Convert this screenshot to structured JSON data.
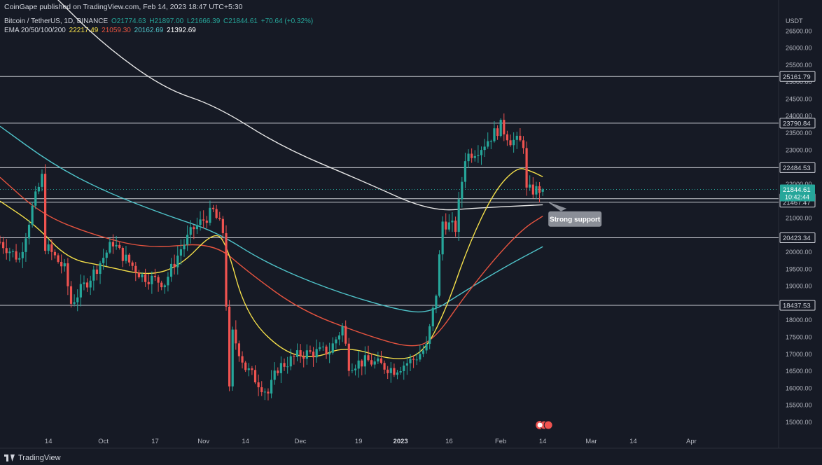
{
  "header": {
    "published": "CoinGape published on TradingView.com, Feb 14, 2023 18:47 UTC+5:30",
    "symbol": "Bitcoin / TetherUS, 1D, BINANCE",
    "ohlc": {
      "o": "O21774.63",
      "h": "H21897.00",
      "l": "L21666.39",
      "c": "C21844.61",
      "chg": "+70.64 (+0.32%)"
    },
    "ema_label": "EMA 20/50/100/200",
    "ema_values": [
      "22217.49",
      "21059.30",
      "20162.69",
      "21392.69"
    ]
  },
  "footer": {
    "brand": "TradingView"
  },
  "annotation": {
    "text": "Strong support"
  },
  "colors": {
    "bg": "#161a25",
    "up": "#26a69a",
    "down": "#ef5350",
    "ema20": "#f5e04a",
    "ema50": "#e5533f",
    "ema100": "#4fc3c9",
    "ema200": "#e6e6e6",
    "level": "#c8cbd2",
    "last": "#26a69a"
  },
  "chart_data": {
    "type": "candlestick",
    "currency": "USDT",
    "ylim": [
      14650,
      27000
    ],
    "y_ticks": [
      15000,
      15500,
      16000,
      16500,
      17000,
      17500,
      18000,
      18500,
      19000,
      19500,
      20000,
      20500,
      21000,
      21500,
      22000,
      22500,
      23000,
      23500,
      24000,
      24500,
      25000,
      25500,
      26000,
      26500
    ],
    "x_range": [
      "2022-08-30",
      "2023-04-28"
    ],
    "x_ticks": [
      {
        "date": "2022-09-14",
        "label": "14"
      },
      {
        "date": "2022-10-01",
        "label": "Oct"
      },
      {
        "date": "2022-10-17",
        "label": "17"
      },
      {
        "date": "2022-11-01",
        "label": "Nov"
      },
      {
        "date": "2022-11-14",
        "label": "14"
      },
      {
        "date": "2022-12-01",
        "label": "Dec"
      },
      {
        "date": "2022-12-19",
        "label": "19"
      },
      {
        "date": "2023-01-01",
        "label": "2023"
      },
      {
        "date": "2023-01-16",
        "label": "16"
      },
      {
        "date": "2023-02-01",
        "label": "Feb"
      },
      {
        "date": "2023-02-14",
        "label": "14"
      },
      {
        "date": "2023-03-01",
        "label": "Mar"
      },
      {
        "date": "2023-03-14",
        "label": "14"
      },
      {
        "date": "2023-04-01",
        "label": "Apr"
      }
    ],
    "levels": [
      25161.79,
      23790.84,
      22484.53,
      21571.05,
      21467.47,
      20423.34,
      18437.53
    ],
    "last_price": "21844.61",
    "countdown": "10:42:44",
    "support_lines": [
      21571.05,
      21467.47
    ],
    "anchors": [
      [
        "2022-08-30",
        20300
      ],
      [
        "2022-09-05",
        19800
      ],
      [
        "2022-09-09",
        21300
      ],
      [
        "2022-09-12",
        22200
      ],
      [
        "2022-09-13",
        20200
      ],
      [
        "2022-09-19",
        19500
      ],
      [
        "2022-09-21",
        18500
      ],
      [
        "2022-09-28",
        19400
      ],
      [
        "2022-10-04",
        20300
      ],
      [
        "2022-10-06",
        20000
      ],
      [
        "2022-10-13",
        19300
      ],
      [
        "2022-10-20",
        19100
      ],
      [
        "2022-10-25",
        20100
      ],
      [
        "2022-10-29",
        20700
      ],
      [
        "2022-11-04",
        21200
      ],
      [
        "2022-11-07",
        20600
      ],
      [
        "2022-11-08",
        18500
      ],
      [
        "2022-11-09",
        15900
      ],
      [
        "2022-11-10",
        17600
      ],
      [
        "2022-11-14",
        16600
      ],
      [
        "2022-11-21",
        15850
      ],
      [
        "2022-11-24",
        16600
      ],
      [
        "2022-12-01",
        17000
      ],
      [
        "2022-12-10",
        17100
      ],
      [
        "2022-12-14",
        17800
      ],
      [
        "2022-12-16",
        16700
      ],
      [
        "2022-12-22",
        16800
      ],
      [
        "2022-12-30",
        16550
      ],
      [
        "2023-01-05",
        16850
      ],
      [
        "2023-01-09",
        17200
      ],
      [
        "2023-01-12",
        18800
      ],
      [
        "2023-01-14",
        20900
      ],
      [
        "2023-01-18",
        20700
      ],
      [
        "2023-01-21",
        22800
      ],
      [
        "2023-01-26",
        23100
      ],
      [
        "2023-02-01",
        23700
      ],
      [
        "2023-02-04",
        23300
      ],
      [
        "2023-02-08",
        23200
      ],
      [
        "2023-02-09",
        21800
      ],
      [
        "2023-02-14",
        21845
      ]
    ],
    "ema20": [
      [
        "2022-08-30",
        21500
      ],
      [
        "2022-09-10",
        20800
      ],
      [
        "2022-09-20",
        19800
      ],
      [
        "2022-10-01",
        19600
      ],
      [
        "2022-10-15",
        19300
      ],
      [
        "2022-10-25",
        19600
      ],
      [
        "2022-11-04",
        20600
      ],
      [
        "2022-11-08",
        20300
      ],
      [
        "2022-11-14",
        18200
      ],
      [
        "2022-11-25",
        17100
      ],
      [
        "2022-12-05",
        16850
      ],
      [
        "2022-12-15",
        17250
      ],
      [
        "2022-12-30",
        16800
      ],
      [
        "2023-01-08",
        17000
      ],
      [
        "2023-01-15",
        18300
      ],
      [
        "2023-01-22",
        20200
      ],
      [
        "2023-01-30",
        21800
      ],
      [
        "2023-02-06",
        22500
      ],
      [
        "2023-02-10",
        22400
      ],
      [
        "2023-02-14",
        22217
      ]
    ],
    "ema50": [
      [
        "2022-08-30",
        22200
      ],
      [
        "2022-09-12",
        21100
      ],
      [
        "2022-09-28",
        20500
      ],
      [
        "2022-10-15",
        20100
      ],
      [
        "2022-11-04",
        20300
      ],
      [
        "2022-11-15",
        19400
      ],
      [
        "2022-12-01",
        18300
      ],
      [
        "2022-12-20",
        17600
      ],
      [
        "2023-01-05",
        17150
      ],
      [
        "2023-01-12",
        17500
      ],
      [
        "2023-01-20",
        18600
      ],
      [
        "2023-01-30",
        19800
      ],
      [
        "2023-02-08",
        20700
      ],
      [
        "2023-02-14",
        21059
      ]
    ],
    "ema100": [
      [
        "2022-08-30",
        23700
      ],
      [
        "2022-09-15",
        22600
      ],
      [
        "2022-10-01",
        21800
      ],
      [
        "2022-10-20",
        21100
      ],
      [
        "2022-11-05",
        20600
      ],
      [
        "2022-11-20",
        19700
      ],
      [
        "2022-12-10",
        18900
      ],
      [
        "2022-12-31",
        18300
      ],
      [
        "2023-01-10",
        18200
      ],
      [
        "2023-01-20",
        18800
      ],
      [
        "2023-02-01",
        19500
      ],
      [
        "2023-02-14",
        20163
      ]
    ],
    "ema200": [
      [
        "2022-09-15",
        27600
      ],
      [
        "2022-10-01",
        26100
      ],
      [
        "2022-10-20",
        24800
      ],
      [
        "2022-11-05",
        24300
      ],
      [
        "2022-11-25",
        23100
      ],
      [
        "2022-12-20",
        22100
      ],
      [
        "2023-01-10",
        21200
      ],
      [
        "2023-01-25",
        21300
      ],
      [
        "2023-02-14",
        21393
      ]
    ]
  }
}
